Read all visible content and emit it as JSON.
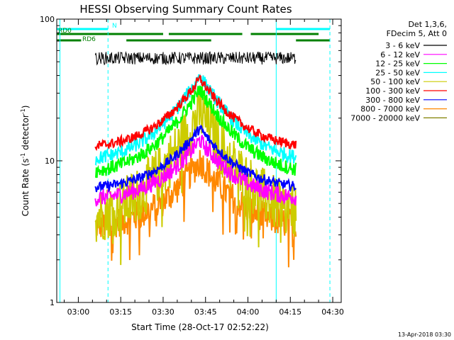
{
  "chart_data": {
    "type": "line",
    "title": "HESSI Observing Summary Count Rates",
    "xlabel": "Start Time (28-Oct-17 02:52:22)",
    "ylabel_main": "Count Rate (s",
    "ylabel_exp1": "-1",
    "ylabel_mid": " detector",
    "ylabel_exp2": "-1",
    "ylabel_end": ")",
    "y_scale": "log",
    "ylim": [
      1,
      100
    ],
    "xlim": [
      "02:52:22",
      "04:33:00"
    ],
    "x_ticks": [
      "03:00",
      "03:15",
      "03:30",
      "03:45",
      "04:00",
      "04:15",
      "04:30"
    ],
    "y_ticks": [
      "1",
      "10",
      "100"
    ],
    "footer_date": "13-Apr-2018 03:30",
    "legend_header": [
      "Det 1,3,6,",
      "FDecim 5, Att 0"
    ],
    "series": [
      {
        "name": "3 - 6 keV",
        "color": "#000000",
        "base": 53,
        "peak": 0,
        "noise": 0.045
      },
      {
        "name": "6 - 12 keV",
        "color": "#ff00ff",
        "base": 5.2,
        "peak": 14,
        "noise": 0.06
      },
      {
        "name": "12 - 25 keV",
        "color": "#00ff00",
        "base": 7.8,
        "peak": 32,
        "noise": 0.05
      },
      {
        "name": "25 - 50 keV",
        "color": "#00ffff",
        "base": 9.5,
        "peak": 40,
        "noise": 0.05
      },
      {
        "name": "50 - 100 keV",
        "color": "#cccc00",
        "base": 3.6,
        "peak": 22,
        "noise": 0.09
      },
      {
        "name": "100 - 300 keV",
        "color": "#ff0000",
        "base": 12,
        "peak": 38,
        "noise": 0.035
      },
      {
        "name": "300 - 800 keV",
        "color": "#0000ff",
        "base": 6.2,
        "peak": 17,
        "noise": 0.035
      },
      {
        "name": "800 - 7000 keV",
        "color": "#ff8800",
        "base": 3.3,
        "peak": 10,
        "noise": 0.05
      },
      {
        "name": "7000 - 20000 keV",
        "color": "#808000",
        "base": 0,
        "peak": 0,
        "noise": 0
      }
    ],
    "data_window": [
      "03:06:00",
      "04:17:00"
    ],
    "peak_time": "03:43:00",
    "flags": [
      {
        "name": "N",
        "color": "#00ffff",
        "segments": [
          [
            "02:52:22",
            "03:10:30"
          ],
          [
            "04:10:00",
            "04:29:00"
          ]
        ]
      },
      {
        "name": "RD0",
        "color": "#008000",
        "segments": [
          [
            "02:52:22",
            "03:30:00"
          ],
          [
            "03:32:00",
            "03:58:00"
          ],
          [
            "04:01:00",
            "04:25:00"
          ]
        ]
      },
      {
        "name": "RD6",
        "color": "#008000",
        "segments": [
          [
            "02:52:22",
            "03:01:00"
          ],
          [
            "03:17:00",
            "03:47:00"
          ],
          [
            "04:17:00",
            "04:29:00"
          ]
        ]
      }
    ],
    "vertical_lines": [
      {
        "time": "02:53:30",
        "style": "solid",
        "color": "#00ffff"
      },
      {
        "time": "03:10:30",
        "style": "dashed",
        "color": "#00ffff"
      },
      {
        "time": "04:10:00",
        "style": "solid",
        "color": "#00ffff"
      },
      {
        "time": "04:29:00",
        "style": "dashed",
        "color": "#00ffff"
      }
    ]
  }
}
